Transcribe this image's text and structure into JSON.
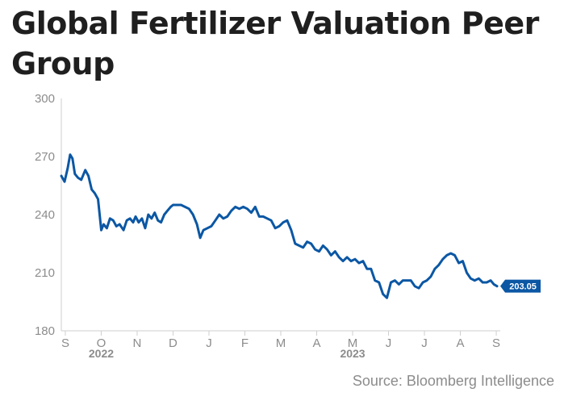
{
  "title": "Global Fertilizer Valuation Peer Group",
  "source": "Source: Bloomberg Intelligence",
  "colors": {
    "line": "#0b57a4",
    "axis": "#cfcfcf",
    "text": "#8c8c8c",
    "title": "#1f1f1f"
  },
  "chart_data": {
    "type": "line",
    "title": "Global Fertilizer Valuation Peer Group",
    "ylim": [
      180,
      300
    ],
    "yticks": [
      180,
      210,
      240,
      270,
      300
    ],
    "xlim": [
      0,
      55.0
    ],
    "x_ticks": [
      {
        "label": "S",
        "x": 0.5
      },
      {
        "label": "O",
        "x": 5.0
      },
      {
        "label": "N",
        "x": 9.5
      },
      {
        "label": "D",
        "x": 14.0
      },
      {
        "label": "J",
        "x": 18.5
      },
      {
        "label": "F",
        "x": 23.0
      },
      {
        "label": "M",
        "x": 27.5
      },
      {
        "label": "A",
        "x": 32.0
      },
      {
        "label": "M",
        "x": 36.5
      },
      {
        "label": "J",
        "x": 41.0
      },
      {
        "label": "J",
        "x": 45.5
      },
      {
        "label": "A",
        "x": 50.0
      },
      {
        "label": "S",
        "x": 54.5
      }
    ],
    "year_labels": [
      {
        "label": "2022",
        "x": 5.0
      },
      {
        "label": "2023",
        "x": 36.5
      }
    ],
    "grid": false,
    "end_value_label": "203.05",
    "series": [
      {
        "values": [
          [
            0,
            260
          ],
          [
            0.4,
            257
          ],
          [
            0.8,
            264
          ],
          [
            1.1,
            271
          ],
          [
            1.4,
            269
          ],
          [
            1.7,
            261
          ],
          [
            2.1,
            259
          ],
          [
            2.5,
            258
          ],
          [
            3.0,
            263
          ],
          [
            3.4,
            260
          ],
          [
            3.8,
            253
          ],
          [
            4.2,
            251
          ],
          [
            4.6,
            248
          ],
          [
            5.0,
            232
          ],
          [
            5.3,
            235
          ],
          [
            5.7,
            233
          ],
          [
            6.1,
            238
          ],
          [
            6.5,
            237
          ],
          [
            6.9,
            234
          ],
          [
            7.3,
            235
          ],
          [
            7.8,
            232
          ],
          [
            8.2,
            237
          ],
          [
            8.6,
            238
          ],
          [
            9.0,
            236
          ],
          [
            9.3,
            239
          ],
          [
            9.7,
            236
          ],
          [
            10.1,
            238
          ],
          [
            10.5,
            233
          ],
          [
            10.9,
            240
          ],
          [
            11.3,
            238
          ],
          [
            11.7,
            241
          ],
          [
            12.1,
            237
          ],
          [
            12.5,
            236
          ],
          [
            12.9,
            240
          ],
          [
            13.3,
            242
          ],
          [
            13.7,
            244
          ],
          [
            14.0,
            245
          ],
          [
            14.5,
            245
          ],
          [
            15.0,
            245
          ],
          [
            15.5,
            244
          ],
          [
            16.0,
            243
          ],
          [
            16.5,
            240
          ],
          [
            17.0,
            235
          ],
          [
            17.4,
            228
          ],
          [
            17.8,
            232
          ],
          [
            18.3,
            233
          ],
          [
            18.8,
            234
          ],
          [
            19.3,
            237
          ],
          [
            19.8,
            240
          ],
          [
            20.3,
            238
          ],
          [
            20.8,
            239
          ],
          [
            21.3,
            242
          ],
          [
            21.8,
            244
          ],
          [
            22.3,
            243
          ],
          [
            22.8,
            244
          ],
          [
            23.3,
            243
          ],
          [
            23.8,
            241
          ],
          [
            24.3,
            244
          ],
          [
            24.8,
            239
          ],
          [
            25.3,
            239
          ],
          [
            25.8,
            238
          ],
          [
            26.3,
            237
          ],
          [
            26.8,
            233
          ],
          [
            27.3,
            234
          ],
          [
            27.8,
            236
          ],
          [
            28.3,
            237
          ],
          [
            28.8,
            232
          ],
          [
            29.3,
            225
          ],
          [
            29.8,
            224
          ],
          [
            30.3,
            223
          ],
          [
            30.8,
            226
          ],
          [
            31.3,
            225
          ],
          [
            31.8,
            222
          ],
          [
            32.3,
            221
          ],
          [
            32.8,
            224
          ],
          [
            33.3,
            222
          ],
          [
            33.8,
            219
          ],
          [
            34.3,
            221
          ],
          [
            34.8,
            218
          ],
          [
            35.3,
            216
          ],
          [
            35.8,
            218
          ],
          [
            36.3,
            216
          ],
          [
            36.8,
            217
          ],
          [
            37.3,
            215
          ],
          [
            37.8,
            216
          ],
          [
            38.3,
            212
          ],
          [
            38.8,
            212
          ],
          [
            39.3,
            206
          ],
          [
            39.8,
            205
          ],
          [
            40.3,
            199
          ],
          [
            40.8,
            197
          ],
          [
            41.3,
            205
          ],
          [
            41.8,
            206
          ],
          [
            42.3,
            204
          ],
          [
            42.8,
            206
          ],
          [
            43.3,
            206
          ],
          [
            43.8,
            206
          ],
          [
            44.3,
            203
          ],
          [
            44.8,
            202
          ],
          [
            45.3,
            205
          ],
          [
            45.8,
            206
          ],
          [
            46.3,
            208
          ],
          [
            46.8,
            212
          ],
          [
            47.3,
            214
          ],
          [
            47.8,
            217
          ],
          [
            48.3,
            219
          ],
          [
            48.8,
            220
          ],
          [
            49.3,
            219
          ],
          [
            49.8,
            215
          ],
          [
            50.3,
            216
          ],
          [
            50.8,
            210
          ],
          [
            51.3,
            207
          ],
          [
            51.8,
            206
          ],
          [
            52.3,
            207
          ],
          [
            52.8,
            205
          ],
          [
            53.3,
            205
          ],
          [
            53.8,
            206
          ],
          [
            54.2,
            204
          ],
          [
            54.6,
            203.05
          ]
        ]
      }
    ]
  }
}
